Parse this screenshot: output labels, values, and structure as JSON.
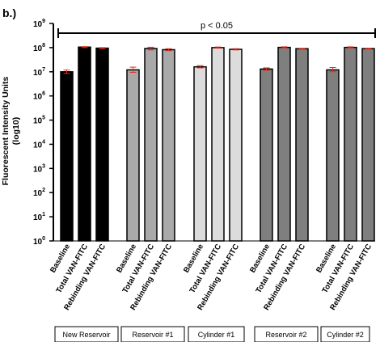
{
  "panel_label": "b.)",
  "chart_data": {
    "type": "bar",
    "ylabel": "Fluorescent Intensity Units",
    "ylabel_sub": "(log10)",
    "y_scale": "log",
    "ylim": [
      1,
      1000000000
    ],
    "y_ticks": [
      {
        "value": 1,
        "base": "10",
        "exp": "0"
      },
      {
        "value": 10,
        "base": "10",
        "exp": "1"
      },
      {
        "value": 100,
        "base": "10",
        "exp": "2"
      },
      {
        "value": 1000,
        "base": "10",
        "exp": "3"
      },
      {
        "value": 10000,
        "base": "10",
        "exp": "4"
      },
      {
        "value": 100000,
        "base": "10",
        "exp": "5"
      },
      {
        "value": 1000000,
        "base": "10",
        "exp": "6"
      },
      {
        "value": 10000000,
        "base": "10",
        "exp": "7"
      },
      {
        "value": 100000000,
        "base": "10",
        "exp": "8"
      },
      {
        "value": 1000000000,
        "base": "10",
        "exp": "9"
      }
    ],
    "significance": "p < 0.05",
    "error_color": "#e0301e",
    "groups": [
      {
        "name": "New Reservoir",
        "color": "#000000",
        "bars": [
          {
            "label": "Baseline",
            "value": 10000000,
            "err_low": 8500000,
            "err_high": 11800000
          },
          {
            "label": "Total VAN-FITC",
            "value": 105000000,
            "err_low": 100000000,
            "err_high": 110000000
          },
          {
            "label": "Rebinding VAN-FITC",
            "value": 95000000,
            "err_low": 90000000,
            "err_high": 100000000
          }
        ]
      },
      {
        "name": "Reservoir #1",
        "color": "#a9a9a9",
        "bars": [
          {
            "label": "Baseline",
            "value": 12000000,
            "err_low": 9500000,
            "err_high": 15500000
          },
          {
            "label": "Total VAN-FITC",
            "value": 92000000,
            "err_low": 80000000,
            "err_high": 104000000
          },
          {
            "label": "Rebinding VAN-FITC",
            "value": 82000000,
            "err_low": 74000000,
            "err_high": 90000000
          }
        ]
      },
      {
        "name": "Cylinder #1",
        "color": "#dcdcdc",
        "bars": [
          {
            "label": "Baseline",
            "value": 16000000,
            "err_low": 14500000,
            "err_high": 18000000
          },
          {
            "label": "Total VAN-FITC",
            "value": 100000000,
            "err_low": 95000000,
            "err_high": 106000000
          },
          {
            "label": "Rebinding VAN-FITC",
            "value": 85000000,
            "err_low": 80000000,
            "err_high": 90000000
          }
        ]
      },
      {
        "name": "Reservoir #2",
        "color": "#7f7f7f",
        "bars": [
          {
            "label": "Baseline",
            "value": 13000000,
            "err_low": 11500000,
            "err_high": 14500000
          },
          {
            "label": "Total VAN-FITC",
            "value": 102000000,
            "err_low": 97000000,
            "err_high": 108000000
          },
          {
            "label": "Rebinding VAN-FITC",
            "value": 90000000,
            "err_low": 86000000,
            "err_high": 94000000
          }
        ]
      },
      {
        "name": "Cylinder #2",
        "color": "#7f7f7f",
        "bars": [
          {
            "label": "Baseline",
            "value": 12000000,
            "err_low": 10000000,
            "err_high": 15000000
          },
          {
            "label": "Total VAN-FITC",
            "value": 102000000,
            "err_low": 97000000,
            "err_high": 108000000
          },
          {
            "label": "Rebinding VAN-FITC",
            "value": 91000000,
            "err_low": 87000000,
            "err_high": 95000000
          }
        ]
      }
    ]
  }
}
